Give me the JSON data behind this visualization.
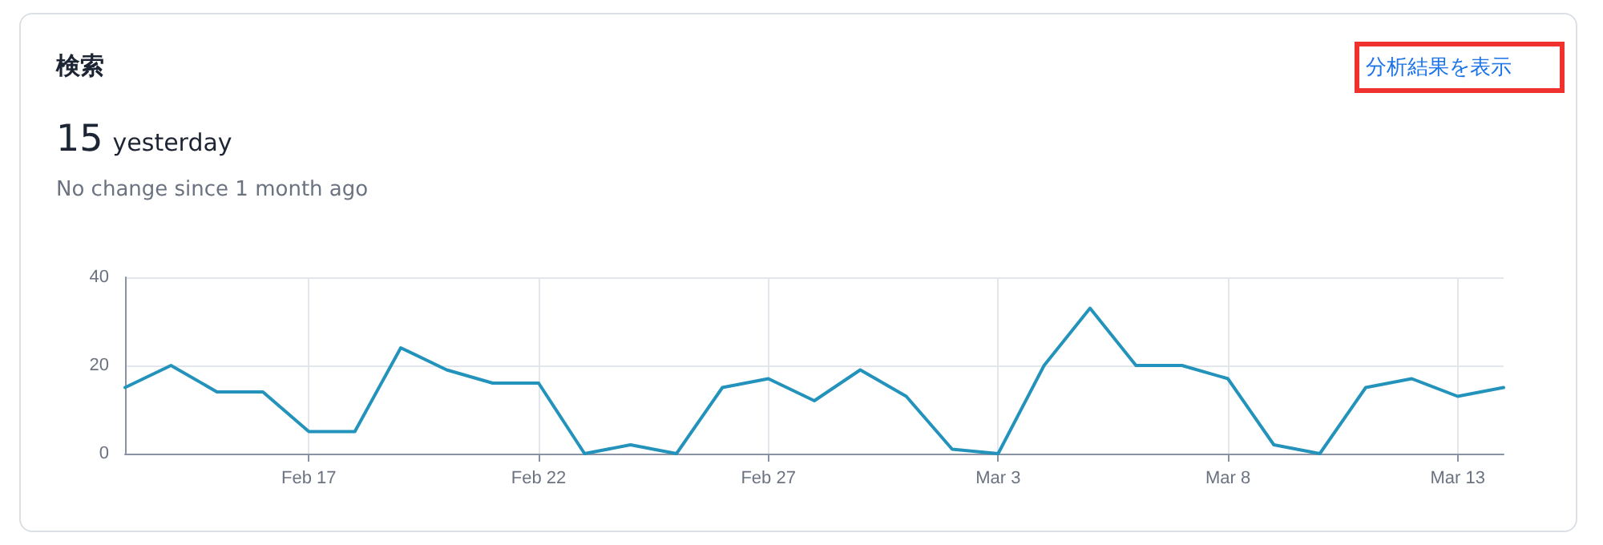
{
  "chart_data": {
    "type": "line",
    "title": "検索",
    "subtitle": "No change since 1 month ago",
    "annotations": [
      "15",
      "yesterday",
      "分析結果を表示"
    ],
    "x": [
      "--02-13",
      "--02-14",
      "--02-15",
      "--02-16",
      "--02-17",
      "--02-18",
      "--02-19",
      "--02-20",
      "--02-21",
      "--02-22",
      "--02-23",
      "--02-24",
      "--02-25",
      "--02-26",
      "--02-27",
      "--02-28",
      "--02-29",
      "--03-01",
      "--03-02",
      "--03-03",
      "--03-04",
      "--03-05",
      "--03-06",
      "--03-07",
      "--03-08",
      "--03-09",
      "--03-10",
      "--03-11",
      "--03-12",
      "--03-13",
      "--03-14"
    ],
    "series": [
      {
        "color": "#2393bb",
        "values": [
          15,
          20,
          14,
          14,
          5,
          5,
          24,
          19,
          16,
          16,
          0,
          2,
          0,
          15,
          17,
          12,
          19,
          13,
          1,
          0,
          20,
          33,
          20,
          20,
          17,
          2,
          0,
          15,
          17,
          13,
          15
        ]
      }
    ],
    "xlim": [
      "--02-13",
      "--03-14"
    ],
    "xticks": [
      {
        "value": "--02-17",
        "label": "Feb 17"
      },
      {
        "value": "--02-22",
        "label": "Feb 22"
      },
      {
        "value": "--02-27",
        "label": "Feb 27"
      },
      {
        "value": "--03-03",
        "label": "Mar 3"
      },
      {
        "value": "--03-08",
        "label": "Mar 8"
      },
      {
        "value": "--03-13",
        "label": "Mar 13"
      }
    ],
    "ylim": [
      0,
      40
    ],
    "yticks": [
      0,
      20,
      40
    ],
    "grid": true,
    "marker": "none",
    "line_style": "solid"
  }
}
